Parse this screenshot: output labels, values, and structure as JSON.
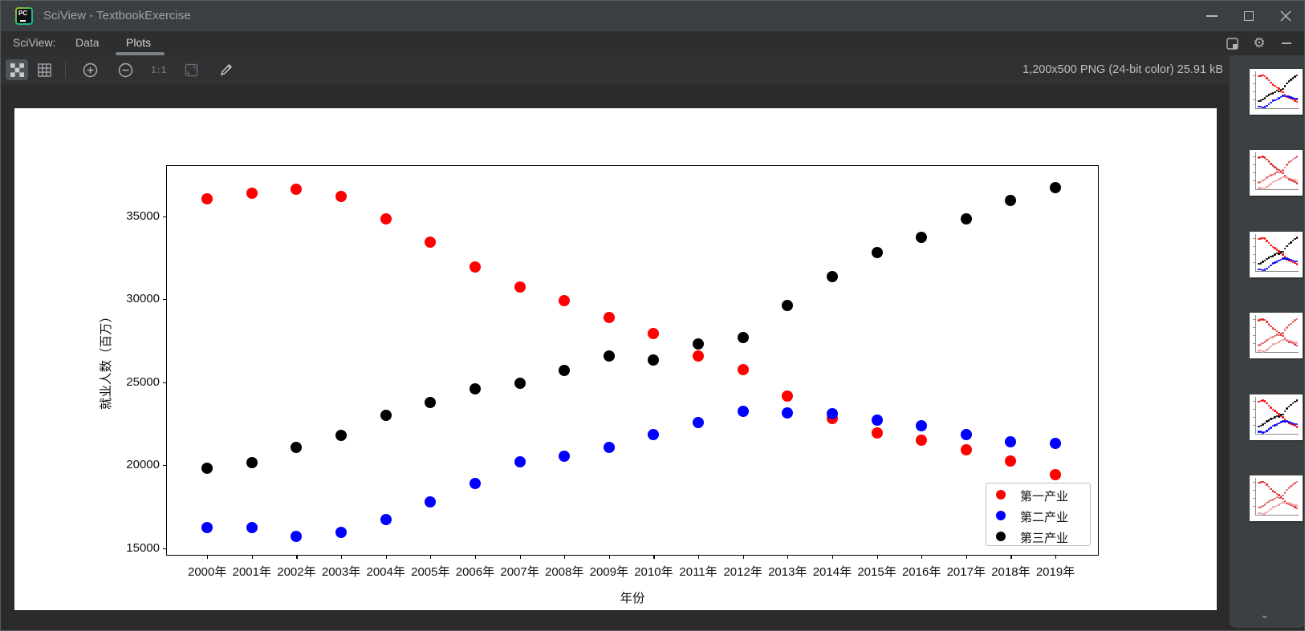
{
  "window": {
    "title": "SciView - TextbookExercise",
    "app_icon_text": "PC",
    "controls": {
      "minimize": "minimize",
      "maximize": "maximize",
      "close": "close"
    }
  },
  "tabbar": {
    "prefix": "SciView:",
    "tabs": [
      {
        "label": "Data",
        "active": false
      },
      {
        "label": "Plots",
        "active": true
      }
    ],
    "right_icons": [
      "layout-icon",
      "gear-icon",
      "hide-panel-icon"
    ]
  },
  "toolbar": {
    "icons": [
      "transparency-checkerboard-icon",
      "grid-lines-icon",
      "zoom-in-icon",
      "zoom-out-icon",
      "actual-size-icon",
      "fit-zoom-icon",
      "pencil-icon"
    ],
    "scale_label": "1:1",
    "info": "1,200x500 PNG (24-bit color) 25.91 kB"
  },
  "chart_data": {
    "type": "scatter",
    "title": "",
    "xlabel": "年份",
    "ylabel": "就业人数（百万）",
    "categories": [
      "2000年",
      "2001年",
      "2002年",
      "2003年",
      "2004年",
      "2005年",
      "2006年",
      "2007年",
      "2008年",
      "2009年",
      "2010年",
      "2011年",
      "2012年",
      "2013年",
      "2014年",
      "2015年",
      "2016年",
      "2017年",
      "2018年",
      "2019年"
    ],
    "series": [
      {
        "name": "第一产业",
        "color": "#ff0000",
        "values": [
          36043,
          36399,
          36640,
          36204,
          34830,
          33442,
          31941,
          30731,
          29923,
          28890,
          27931,
          26594,
          25773,
          24171,
          22790,
          21919,
          21496,
          20944,
          20258,
          19445
        ]
      },
      {
        "name": "第二产业",
        "color": "#0000ff",
        "values": [
          16219,
          16234,
          15682,
          15927,
          16709,
          17766,
          18894,
          20186,
          20553,
          21080,
          21842,
          22544,
          23241,
          23170,
          23099,
          22693,
          22350,
          21824,
          21390,
          21305
        ]
      },
      {
        "name": "第三产业",
        "color": "#000000",
        "values": [
          19823,
          20165,
          21090,
          21809,
          23011,
          23771,
          24614,
          24917,
          25717,
          26603,
          26332,
          27282,
          27690,
          29636,
          31364,
          32839,
          33757,
          34872,
          35938,
          36721
        ]
      }
    ],
    "yticks": [
      15000,
      20000,
      25000,
      30000,
      35000
    ],
    "ylim": [
      14565,
      38112
    ],
    "xlim_index": [
      -0.92,
      19.97
    ],
    "grid": false,
    "legend_position": "lower right"
  },
  "thumbnails": {
    "count": 6,
    "variants": [
      "tricolor",
      "red",
      "tricolor",
      "red",
      "tricolor",
      "red"
    ],
    "scroll_down_icon": "chevron-down-icon"
  }
}
